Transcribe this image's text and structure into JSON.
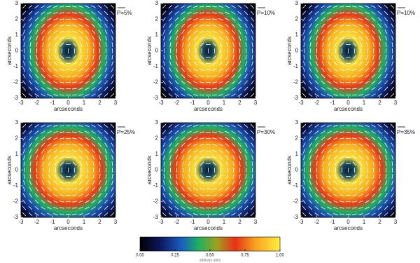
{
  "chart_data": [
    {
      "type": "heatmap",
      "xlabel": "arcseconds",
      "ylabel": "arcseconds",
      "annotation": "P=5%",
      "xlim": [
        -3,
        3
      ],
      "ylim": [
        -3,
        3
      ],
      "xticks": [
        -3,
        -2,
        -1,
        0,
        1,
        2,
        3
      ],
      "yticks": [
        -3,
        -2,
        -1,
        0,
        1,
        2,
        3
      ]
    },
    {
      "type": "heatmap",
      "xlabel": "arcseconds",
      "ylabel": "arcseconds",
      "annotation": "P=10%",
      "xlim": [
        -3,
        3
      ],
      "ylim": [
        -3,
        3
      ],
      "xticks": [
        -3,
        -2,
        -1,
        0,
        1,
        2,
        3
      ],
      "yticks": [
        -3,
        -2,
        -1,
        0,
        1,
        2,
        3
      ]
    },
    {
      "type": "heatmap",
      "xlabel": "arcseconds",
      "ylabel": "arcseconds",
      "annotation": "P=10%",
      "xlim": [
        -3,
        3
      ],
      "ylim": [
        -3,
        3
      ],
      "xticks": [
        -3,
        -2,
        -1,
        0,
        1,
        2,
        3
      ],
      "yticks": [
        -3,
        -2,
        -1,
        0,
        1,
        2,
        3
      ]
    },
    {
      "type": "heatmap",
      "xlabel": "arcseconds",
      "ylabel": "arcseconds",
      "annotation": "P=25%",
      "xlim": [
        -3,
        3
      ],
      "ylim": [
        -3,
        3
      ],
      "xticks": [
        -3,
        -2,
        -1,
        0,
        1,
        2,
        3
      ],
      "yticks": [
        -3,
        -2,
        -1,
        0,
        1,
        2,
        3
      ]
    },
    {
      "type": "heatmap",
      "xlabel": "arcseconds",
      "ylabel": "arcseconds",
      "annotation": "P=30%",
      "xlim": [
        -3,
        3
      ],
      "ylim": [
        -3,
        3
      ],
      "xticks": [
        -3,
        -2,
        -1,
        0,
        1,
        2,
        3
      ],
      "yticks": [
        -3,
        -2,
        -1,
        0,
        1,
        2,
        3
      ]
    },
    {
      "type": "heatmap",
      "xlabel": "arcseconds",
      "ylabel": "arcseconds",
      "annotation": "P=35%",
      "xlim": [
        -3,
        3
      ],
      "ylim": [
        -3,
        3
      ],
      "xticks": [
        -3,
        -2,
        -1,
        0,
        1,
        2,
        3
      ],
      "yticks": [
        -3,
        -2,
        -1,
        0,
        1,
        2,
        3
      ]
    },
    {
      "type": "colorbar",
      "xlabel": "arbitrary units",
      "xlim": [
        0,
        1
      ],
      "xticks": [
        {
          "value": 0,
          "label": "0.00"
        },
        0.25,
        {
          "value": 0.5,
          "label": "0.50"
        },
        0.75,
        {
          "value": 1,
          "label": "1.00"
        }
      ]
    }
  ]
}
